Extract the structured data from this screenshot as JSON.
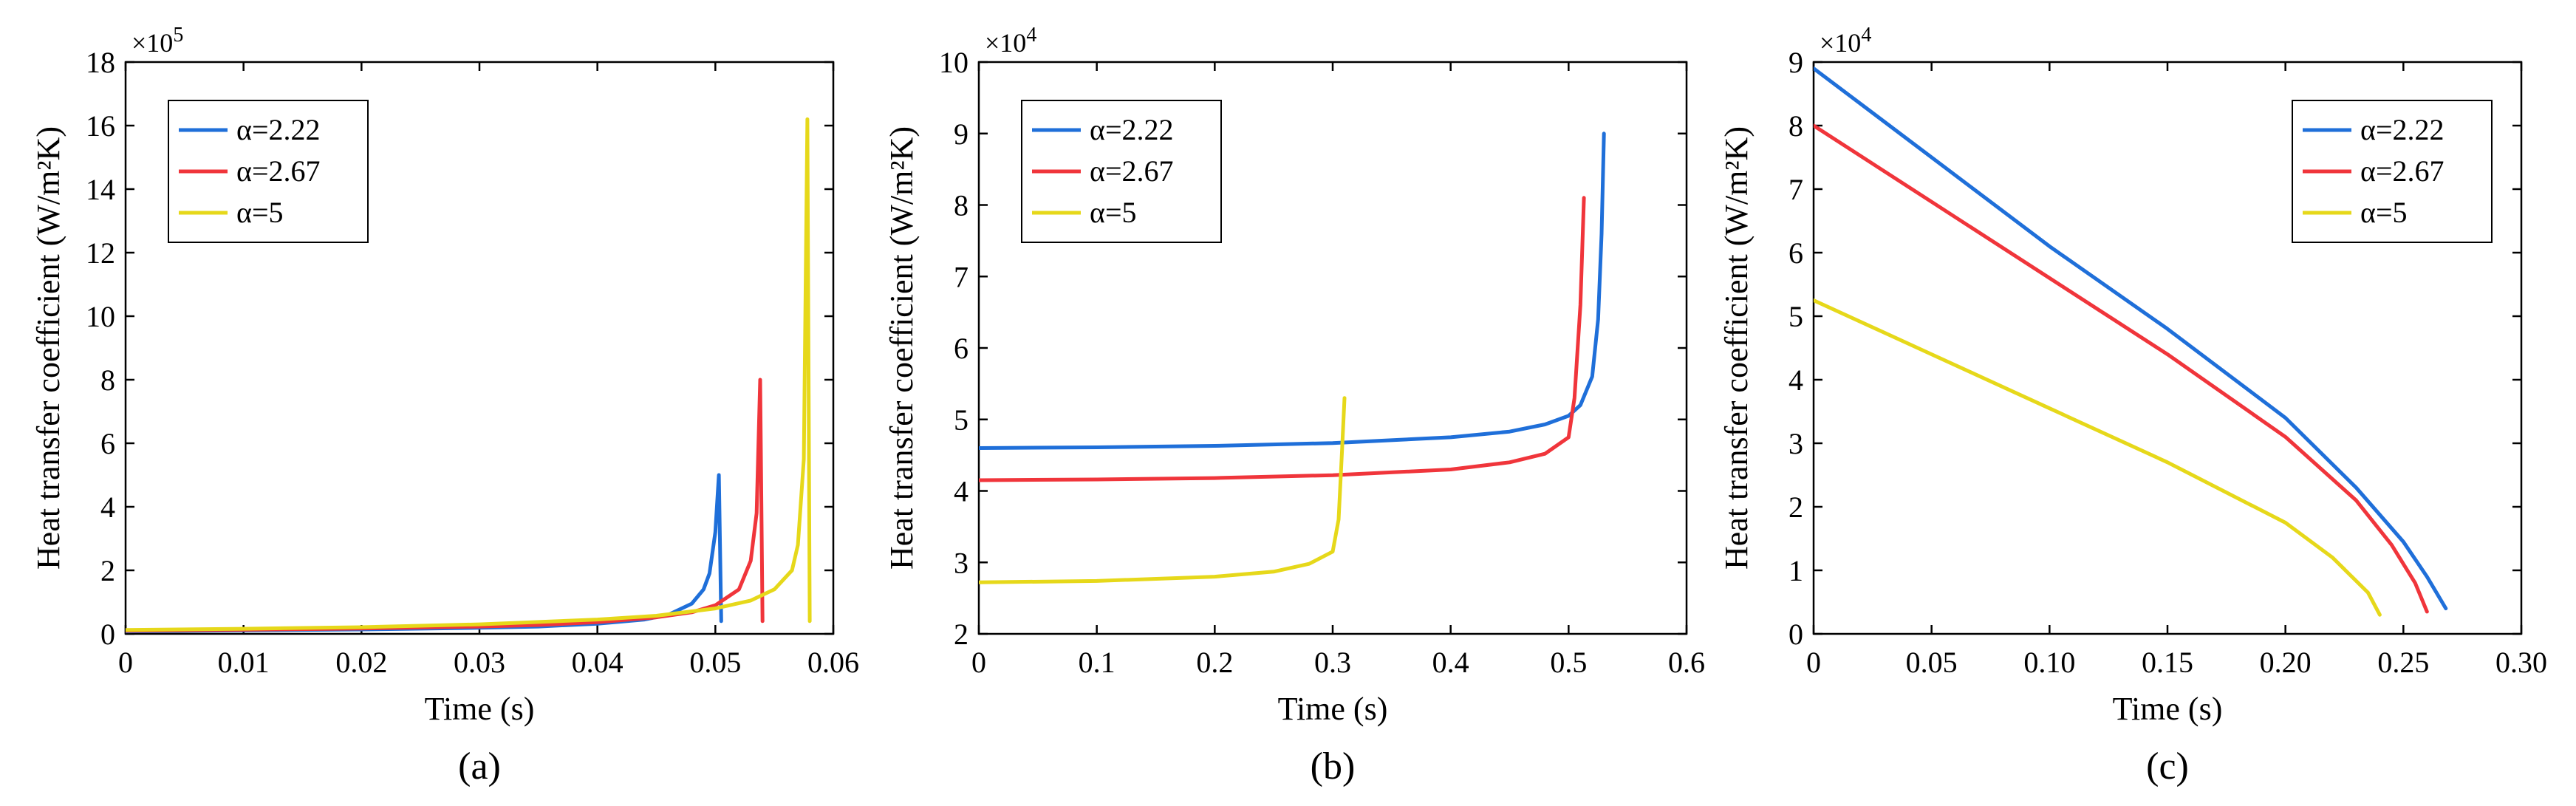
{
  "colors": {
    "a222": "#1f6fd9",
    "a267": "#f0353b",
    "a5": "#e6d81a"
  },
  "chart_data": [
    {
      "type": "line",
      "caption": "(a)",
      "xlabel": "Time (s)",
      "ylabel": "Heat transfer coefficient (W/m²K)",
      "exponent_base": "×10",
      "exponent_power": "5",
      "xlim": [
        0,
        0.06
      ],
      "ylim": [
        0,
        18
      ],
      "xticks": [
        0,
        0.01,
        0.02,
        0.03,
        0.04,
        0.05,
        0.06
      ],
      "xtick_labels": [
        "0",
        "0.01",
        "0.02",
        "0.03",
        "0.04",
        "0.05",
        "0.06"
      ],
      "yticks": [
        0,
        2,
        4,
        6,
        8,
        10,
        12,
        14,
        16,
        18
      ],
      "ytick_labels": [
        "0",
        "2",
        "4",
        "6",
        "8",
        "10",
        "12",
        "14",
        "16",
        "18"
      ],
      "legend_position": "top-left",
      "series": [
        {
          "name": "α=2.22",
          "color": "#1f6fd9",
          "x": [
            0,
            0.01,
            0.02,
            0.03,
            0.035,
            0.04,
            0.044,
            0.046,
            0.048,
            0.049,
            0.0495,
            0.05,
            0.0503,
            0.0505
          ],
          "y": [
            0.08,
            0.11,
            0.14,
            0.19,
            0.23,
            0.32,
            0.45,
            0.6,
            0.95,
            1.4,
            1.9,
            3.2,
            5.0,
            0.4
          ]
        },
        {
          "name": "α=2.67",
          "color": "#f0353b",
          "x": [
            0,
            0.01,
            0.02,
            0.03,
            0.035,
            0.04,
            0.045,
            0.048,
            0.05,
            0.052,
            0.053,
            0.0535,
            0.0538,
            0.054
          ],
          "y": [
            0.1,
            0.13,
            0.17,
            0.23,
            0.28,
            0.37,
            0.52,
            0.68,
            0.9,
            1.4,
            2.3,
            3.8,
            8.0,
            0.4
          ]
        },
        {
          "name": "α=5",
          "color": "#e6d81a",
          "x": [
            0,
            0.01,
            0.02,
            0.03,
            0.04,
            0.045,
            0.05,
            0.053,
            0.055,
            0.0565,
            0.057,
            0.0575,
            0.0578,
            0.058
          ],
          "y": [
            0.12,
            0.16,
            0.21,
            0.3,
            0.45,
            0.57,
            0.8,
            1.05,
            1.4,
            2.0,
            2.8,
            5.5,
            16.2,
            0.4
          ]
        }
      ]
    },
    {
      "type": "line",
      "caption": "(b)",
      "xlabel": "Time (s)",
      "ylabel": "Heat transfer coefficient (W/m²K)",
      "exponent_base": "×10",
      "exponent_power": "4",
      "xlim": [
        0,
        0.6
      ],
      "ylim": [
        2,
        10
      ],
      "xticks": [
        0,
        0.1,
        0.2,
        0.3,
        0.4,
        0.5,
        0.6
      ],
      "xtick_labels": [
        "0",
        "0.1",
        "0.2",
        "0.3",
        "0.4",
        "0.5",
        "0.6"
      ],
      "yticks": [
        2,
        3,
        4,
        5,
        6,
        7,
        8,
        9,
        10
      ],
      "ytick_labels": [
        "2",
        "3",
        "4",
        "5",
        "6",
        "7",
        "8",
        "9",
        "10"
      ],
      "legend_position": "top-left",
      "series": [
        {
          "name": "α=2.22",
          "color": "#1f6fd9",
          "x": [
            0,
            0.1,
            0.2,
            0.3,
            0.4,
            0.45,
            0.48,
            0.5,
            0.51,
            0.52,
            0.525,
            0.528,
            0.53
          ],
          "y": [
            4.6,
            4.61,
            4.63,
            4.67,
            4.75,
            4.83,
            4.93,
            5.05,
            5.2,
            5.6,
            6.4,
            7.6,
            9.0
          ]
        },
        {
          "name": "α=2.67",
          "color": "#f0353b",
          "x": [
            0,
            0.1,
            0.2,
            0.3,
            0.4,
            0.45,
            0.48,
            0.5,
            0.505,
            0.51,
            0.513
          ],
          "y": [
            4.15,
            4.16,
            4.18,
            4.22,
            4.3,
            4.4,
            4.52,
            4.75,
            5.3,
            6.6,
            8.1
          ]
        },
        {
          "name": "α=5",
          "color": "#e6d81a",
          "x": [
            0,
            0.1,
            0.2,
            0.25,
            0.28,
            0.3,
            0.305,
            0.308,
            0.31
          ],
          "y": [
            2.72,
            2.74,
            2.8,
            2.87,
            2.98,
            3.15,
            3.6,
            4.6,
            5.3
          ]
        }
      ]
    },
    {
      "type": "line",
      "caption": "(c)",
      "xlabel": "Time (s)",
      "ylabel": "Heat transfer coefficient (W/m²K)",
      "exponent_base": "×10",
      "exponent_power": "4",
      "xlim": [
        0,
        0.3
      ],
      "ylim": [
        0,
        9
      ],
      "xticks": [
        0,
        0.05,
        0.1,
        0.15,
        0.2,
        0.25,
        0.3
      ],
      "xtick_labels": [
        "0",
        "0.05",
        "0.10",
        "0.15",
        "0.20",
        "0.25",
        "0.30"
      ],
      "yticks": [
        0,
        1,
        2,
        3,
        4,
        5,
        6,
        7,
        8,
        9
      ],
      "ytick_labels": [
        "0",
        "1",
        "2",
        "3",
        "4",
        "5",
        "6",
        "7",
        "8",
        "9"
      ],
      "legend_position": "top-right",
      "series": [
        {
          "name": "α=2.22",
          "color": "#1f6fd9",
          "x": [
            0,
            0.05,
            0.1,
            0.15,
            0.2,
            0.23,
            0.25,
            0.26,
            0.268
          ],
          "y": [
            8.9,
            7.5,
            6.1,
            4.8,
            3.4,
            2.3,
            1.45,
            0.9,
            0.4
          ]
        },
        {
          "name": "α=2.67",
          "color": "#f0353b",
          "x": [
            0,
            0.05,
            0.1,
            0.15,
            0.2,
            0.23,
            0.245,
            0.255,
            0.26
          ],
          "y": [
            8.0,
            6.8,
            5.6,
            4.4,
            3.1,
            2.1,
            1.4,
            0.8,
            0.35
          ]
        },
        {
          "name": "α=5",
          "color": "#e6d81a",
          "x": [
            0,
            0.05,
            0.1,
            0.15,
            0.2,
            0.22,
            0.235,
            0.24
          ],
          "y": [
            5.25,
            4.4,
            3.55,
            2.7,
            1.75,
            1.2,
            0.65,
            0.3
          ]
        }
      ]
    }
  ]
}
